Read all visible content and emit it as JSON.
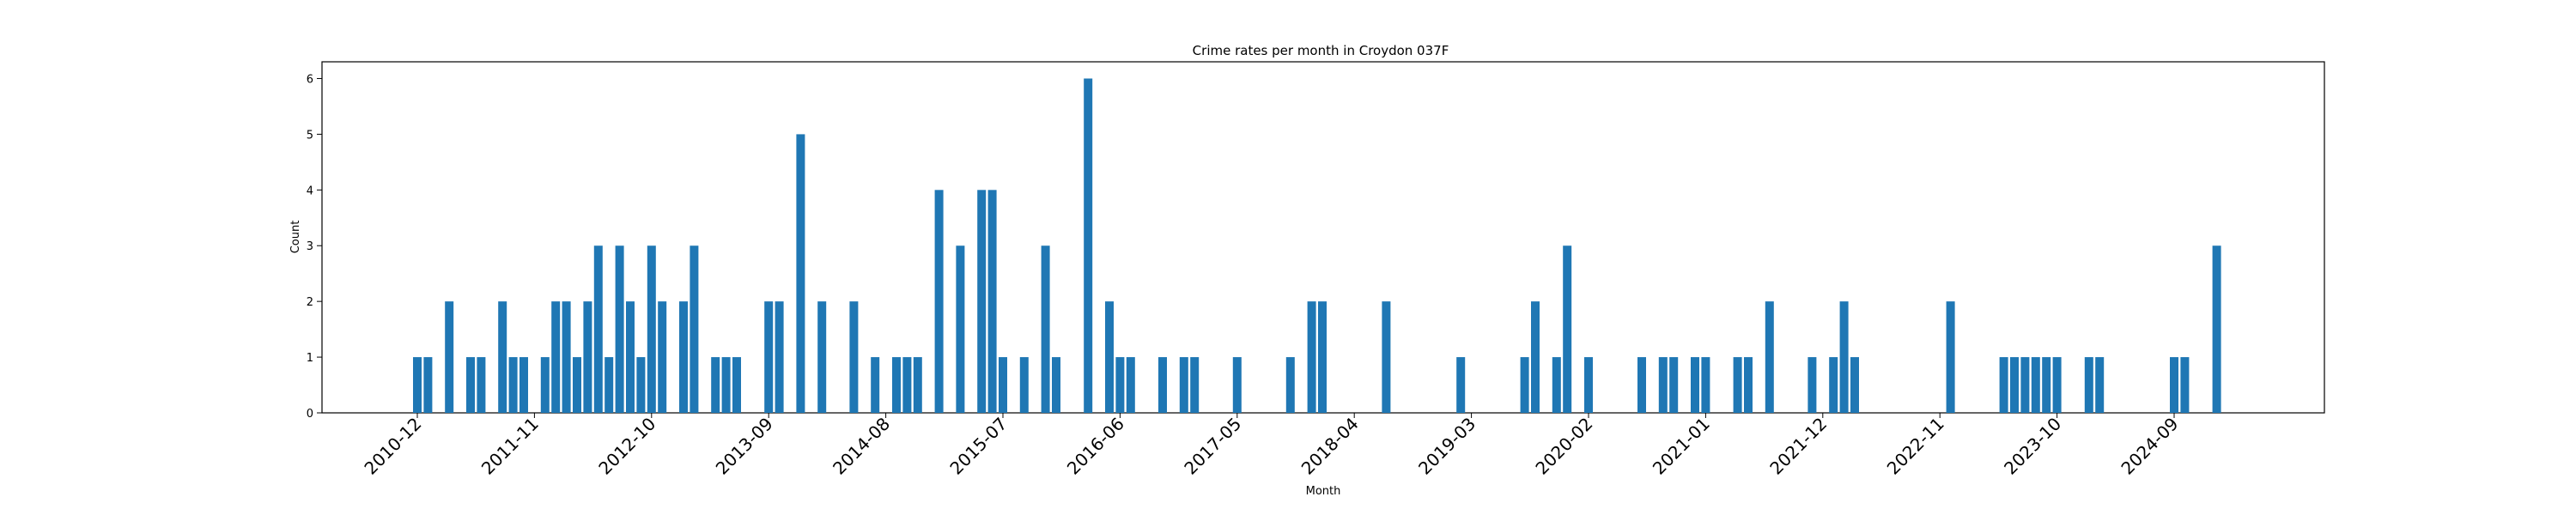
{
  "chart_data": {
    "type": "bar",
    "title": "Crime rates per month in Croydon 037F",
    "xlabel": "Month",
    "ylabel": "Count",
    "ylim": [
      0,
      6.3
    ],
    "yticks": [
      0,
      1,
      2,
      3,
      4,
      5,
      6
    ],
    "xticks": [
      "2010-12",
      "2011-11",
      "2012-10",
      "2013-09",
      "2014-08",
      "2015-07",
      "2016-06",
      "2017-05",
      "2018-04",
      "2019-03",
      "2020-02",
      "2021-01",
      "2021-12",
      "2022-11",
      "2023-10",
      "2024-09"
    ],
    "color": "#1f77b4",
    "legend": "none",
    "grid": false,
    "x": [
      "2010-12",
      "2011-01",
      "2011-03",
      "2011-05",
      "2011-06",
      "2011-08",
      "2011-09",
      "2011-10",
      "2011-12",
      "2012-01",
      "2012-02",
      "2012-03",
      "2012-04",
      "2012-05",
      "2012-06",
      "2012-07",
      "2012-08",
      "2012-09",
      "2012-10",
      "2012-11",
      "2013-01",
      "2013-02",
      "2013-04",
      "2013-05",
      "2013-06",
      "2013-09",
      "2013-10",
      "2013-12",
      "2014-02",
      "2014-05",
      "2014-07",
      "2014-09",
      "2014-10",
      "2014-11",
      "2015-01",
      "2015-03",
      "2015-05",
      "2015-06",
      "2015-07",
      "2015-09",
      "2015-11",
      "2015-12",
      "2016-03",
      "2016-05",
      "2016-06",
      "2016-07",
      "2016-10",
      "2016-12",
      "2017-01",
      "2017-05",
      "2017-10",
      "2018-00",
      "2018-01",
      "2018-07",
      "2019-02",
      "2019-08",
      "2019-09",
      "2019-11",
      "2019-12",
      "2020-02",
      "2020-07",
      "2020-09",
      "2020-10",
      "2020-12",
      "2021-01",
      "2021-04",
      "2021-05",
      "2021-07",
      "2021-11",
      "2022-01",
      "2022-02",
      "2022-03",
      "2022-12",
      "2023-05",
      "2023-06",
      "2023-07",
      "2023-08",
      "2023-09",
      "2023-10",
      "2024-01",
      "2024-02",
      "2024-09",
      "2024-10",
      "2025-01"
    ],
    "values": [
      1,
      1,
      2,
      1,
      1,
      2,
      1,
      1,
      1,
      2,
      2,
      1,
      2,
      3,
      1,
      3,
      2,
      1,
      3,
      2,
      2,
      3,
      1,
      1,
      1,
      2,
      2,
      5,
      2,
      2,
      1,
      1,
      1,
      1,
      4,
      3,
      4,
      4,
      1,
      1,
      3,
      1,
      6,
      2,
      1,
      1,
      1,
      1,
      1,
      1,
      1,
      2,
      2,
      2,
      1,
      1,
      2,
      1,
      3,
      1,
      1,
      1,
      1,
      1,
      1,
      1,
      1,
      2,
      1,
      1,
      2,
      1,
      2,
      1,
      1,
      1,
      1,
      1,
      1,
      1,
      1,
      1,
      1,
      3
    ]
  }
}
